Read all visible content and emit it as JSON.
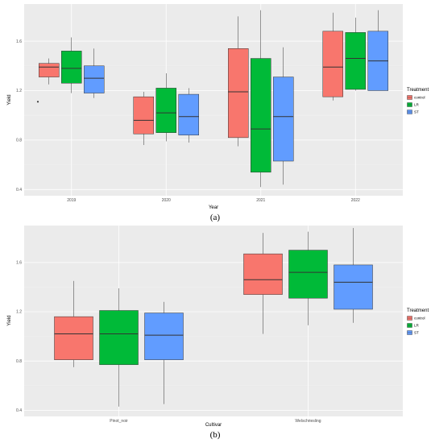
{
  "chart_data": [
    {
      "panel_label": "(a)",
      "type": "boxplot",
      "xlabel": "Year",
      "ylabel": "Yield",
      "ylim": [
        0.35,
        1.9
      ],
      "yticks": [
        0.4,
        0.8,
        1.2,
        1.6
      ],
      "ytick_labels": [
        "0.4",
        "0.8",
        "1.2",
        "1.6"
      ],
      "categories": [
        "2019",
        "2020",
        "2021",
        "2022"
      ],
      "legend": {
        "title": "Treatment",
        "position": "right",
        "entries": [
          "control",
          "LR",
          "ST"
        ]
      },
      "colors": {
        "control": "#f8766d",
        "LR": "#00ba38",
        "ST": "#619cff"
      },
      "series": [
        {
          "name": "control",
          "boxes": [
            {
              "min": 1.25,
              "q1": 1.31,
              "median": 1.39,
              "q3": 1.42,
              "max": 1.46,
              "outliers": [
                1.11
              ]
            },
            {
              "min": 0.76,
              "q1": 0.85,
              "median": 0.96,
              "q3": 1.15,
              "max": 1.19,
              "outliers": []
            },
            {
              "min": 0.75,
              "q1": 0.82,
              "median": 1.19,
              "q3": 1.54,
              "max": 1.8,
              "outliers": []
            },
            {
              "min": 1.12,
              "q1": 1.15,
              "median": 1.39,
              "q3": 1.68,
              "max": 1.83,
              "outliers": []
            }
          ]
        },
        {
          "name": "LR",
          "boxes": [
            {
              "min": 1.18,
              "q1": 1.26,
              "median": 1.38,
              "q3": 1.52,
              "max": 1.63,
              "outliers": []
            },
            {
              "min": 0.79,
              "q1": 0.86,
              "median": 1.02,
              "q3": 1.22,
              "max": 1.34,
              "outliers": []
            },
            {
              "min": 0.42,
              "q1": 0.54,
              "median": 0.89,
              "q3": 1.46,
              "max": 1.85,
              "outliers": []
            },
            {
              "min": 1.2,
              "q1": 1.21,
              "median": 1.46,
              "q3": 1.67,
              "max": 1.79,
              "outliers": []
            }
          ]
        },
        {
          "name": "ST",
          "boxes": [
            {
              "min": 1.14,
              "q1": 1.18,
              "median": 1.3,
              "q3": 1.4,
              "max": 1.54,
              "outliers": []
            },
            {
              "min": 0.78,
              "q1": 0.84,
              "median": 0.99,
              "q3": 1.17,
              "max": 1.22,
              "outliers": []
            },
            {
              "min": 0.44,
              "q1": 0.63,
              "median": 0.99,
              "q3": 1.31,
              "max": 1.55,
              "outliers": []
            },
            {
              "min": 1.2,
              "q1": 1.2,
              "median": 1.44,
              "q3": 1.68,
              "max": 1.85,
              "outliers": []
            }
          ]
        }
      ]
    },
    {
      "panel_label": "(b)",
      "type": "boxplot",
      "xlabel": "Cultivar",
      "ylabel": "Yield",
      "ylim": [
        0.35,
        1.9
      ],
      "yticks": [
        0.4,
        0.8,
        1.2,
        1.6
      ],
      "ytick_labels": [
        "0.4",
        "0.8",
        "1.2",
        "1.6"
      ],
      "categories": [
        "Pinot_noir",
        "Welschriesling"
      ],
      "legend": {
        "title": "Treatment",
        "position": "right",
        "entries": [
          "control",
          "LR",
          "ST"
        ]
      },
      "colors": {
        "control": "#f8766d",
        "LR": "#00ba38",
        "ST": "#619cff"
      },
      "series": [
        {
          "name": "control",
          "boxes": [
            {
              "min": 0.75,
              "q1": 0.81,
              "median": 1.02,
              "q3": 1.16,
              "max": 1.45,
              "outliers": []
            },
            {
              "min": 1.02,
              "q1": 1.34,
              "median": 1.46,
              "q3": 1.67,
              "max": 1.84,
              "outliers": []
            }
          ]
        },
        {
          "name": "LR",
          "boxes": [
            {
              "min": 0.43,
              "q1": 0.77,
              "median": 1.02,
              "q3": 1.21,
              "max": 1.39,
              "outliers": []
            },
            {
              "min": 1.09,
              "q1": 1.31,
              "median": 1.52,
              "q3": 1.7,
              "max": 1.85,
              "outliers": []
            }
          ]
        },
        {
          "name": "ST",
          "boxes": [
            {
              "min": 0.45,
              "q1": 0.81,
              "median": 1.01,
              "q3": 1.19,
              "max": 1.28,
              "outliers": []
            },
            {
              "min": 1.11,
              "q1": 1.22,
              "median": 1.44,
              "q3": 1.58,
              "max": 1.88,
              "outliers": []
            }
          ]
        }
      ]
    }
  ]
}
